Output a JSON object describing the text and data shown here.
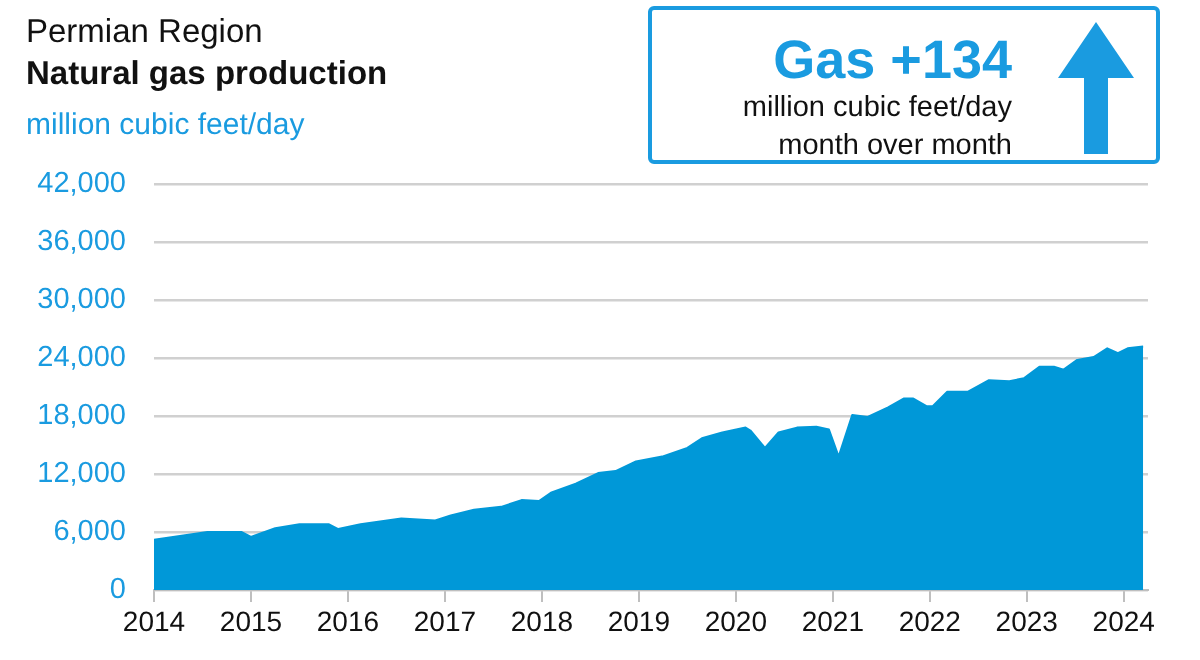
{
  "chart_data": {
    "type": "area",
    "title": "Permian Region",
    "subtitle": "Natural gas production",
    "ylabel": "million cubic feet/day",
    "annotations": [
      "Gas +134",
      "million cubic feet/day",
      "month over month"
    ],
    "x": [
      2014.0,
      2014.55,
      2014.9,
      2015.0,
      2015.25,
      2015.5,
      2015.8,
      2015.9,
      2016.13,
      2016.55,
      2016.9,
      2017.06,
      2017.3,
      2017.58,
      2017.79,
      2017.97,
      2018.1,
      2018.35,
      2018.58,
      2018.76,
      2018.97,
      2019.24,
      2019.5,
      2019.65,
      2019.86,
      2020.1,
      2020.15,
      2020.3,
      2020.44,
      2020.63,
      2020.83,
      2020.96,
      2021.06,
      2021.2,
      2021.36,
      2021.57,
      2021.73,
      2021.83,
      2021.97,
      2022.03,
      2022.18,
      2022.39,
      2022.61,
      2022.82,
      2022.97,
      2023.13,
      2023.28,
      2023.38,
      2023.52,
      2023.69,
      2023.83,
      2023.94,
      2024.04,
      2024.2
    ],
    "series": [
      {
        "color": "#0098d8",
        "values": [
          5200,
          6000,
          6000,
          5500,
          6400,
          6800,
          6800,
          6300,
          6800,
          7400,
          7200,
          7700,
          8300,
          8600,
          9300,
          9200,
          10100,
          11000,
          12100,
          12300,
          13300,
          13800,
          14700,
          15700,
          16300,
          16800,
          16500,
          14700,
          16300,
          16800,
          16900,
          16600,
          13800,
          18100,
          17900,
          18900,
          19800,
          19800,
          19000,
          19000,
          20500,
          20500,
          21700,
          21600,
          21900,
          23100,
          23100,
          22800,
          23800,
          24100,
          25000,
          24500,
          25000,
          25200
        ]
      }
    ],
    "xlim": [
      2014,
      2024.25
    ],
    "xticks": [
      2014,
      2015,
      2016,
      2017,
      2018,
      2019,
      2020,
      2021,
      2022,
      2023,
      2024
    ],
    "ylim": [
      0,
      42000
    ],
    "yticks": [
      0,
      {
        "value": 6000,
        "label": "6,000"
      },
      {
        "value": 12000,
        "label": "12,000"
      },
      {
        "value": 18000,
        "label": "18,000"
      },
      {
        "value": 24000,
        "label": "24,000"
      },
      {
        "value": 30000,
        "label": "30,000"
      },
      {
        "value": 36000,
        "label": "36,000"
      },
      {
        "value": 42000,
        "label": "42,000"
      }
    ],
    "grid": "y",
    "legend": false,
    "marker": "none"
  }
}
